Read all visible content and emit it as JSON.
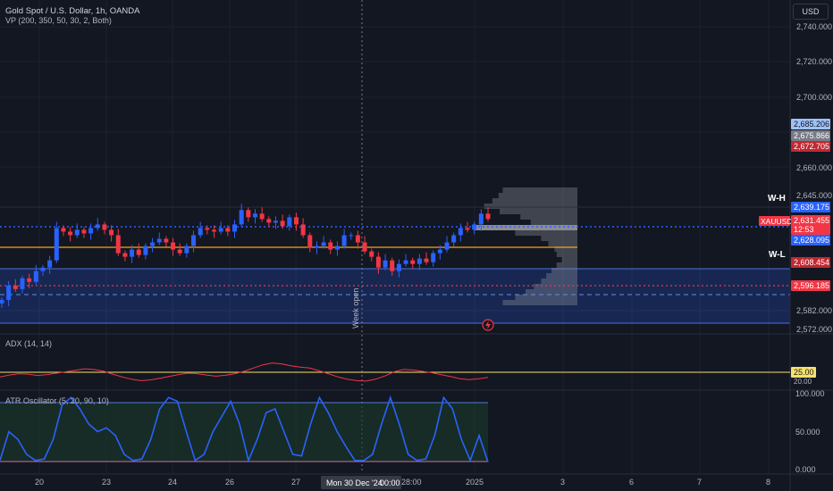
{
  "header": {
    "title": "Gold Spot / U.S. Dollar, 1h, OANDA",
    "vp_label": "VP (200, 350, 50, 30, 2, Both)",
    "currency_button": "USD"
  },
  "price_scale": {
    "ticks": [
      "2,740.000",
      "2,720.000",
      "2,700.000",
      "2,660.000",
      "2,645.000",
      "2,582.000",
      "2,572.000"
    ],
    "tags": {
      "t1": "2,685.206",
      "t2": "2,675.866",
      "t3": "2,672.705",
      "wh": "2,639.175",
      "sym": "XAUUSD",
      "price": "2,631.455",
      "countdown": "12:53",
      "t4": "2,628.095",
      "t5": "2,608.454",
      "t6": "2,596.185"
    },
    "wh_label": "W-H",
    "wl_label": "W-L"
  },
  "colors": {
    "background": "#131722",
    "up": "#2962ff",
    "down": "#f23645",
    "orange_line": "#f7a21b",
    "blue_zone": "#2962ff",
    "grid": "#1e2230"
  },
  "annotations": {
    "week_open": "Week open"
  },
  "adx": {
    "label": "ADX (14, 14)",
    "ticks": [
      "25.00",
      "20.00"
    ]
  },
  "atr": {
    "label": "ATR Oscillator (5, 20, 90, 10)",
    "ticks": [
      "100.000",
      "50.000",
      "0.000"
    ]
  },
  "time_axis": {
    "labels": [
      "20",
      "23",
      "24",
      "26",
      "27",
      "28:00",
      "2025",
      "3",
      "6",
      "7",
      "8"
    ],
    "crosshair": "Mon 30 Dec '24",
    "crosshair_time": "00:00"
  },
  "chart_data": {
    "type": "candlestick",
    "title": "Gold Spot / U.S. Dollar, 1h, OANDA",
    "ylim": [
      2566,
      2746
    ],
    "last_price": 2631.455,
    "levels": {
      "week_high": 2639.175,
      "week_low": 2608.454,
      "poc": 2628.095,
      "orange_line": 2618.0,
      "dashed_red": 2596.185,
      "dashed_blue": 2591.0
    },
    "zone": [
      2572,
      2604
    ],
    "close_path": [
      2588,
      2596,
      2594,
      2600,
      2598,
      2604,
      2606,
      2610,
      2628,
      2626,
      2624,
      2627,
      2625,
      2628,
      2630,
      2627,
      2624,
      2614,
      2612,
      2616,
      2613,
      2618,
      2620,
      2622,
      2620,
      2616,
      2614,
      2618,
      2624,
      2628,
      2627,
      2626,
      2628,
      2626,
      2630,
      2638,
      2634,
      2636,
      2633,
      2631,
      2632,
      2629,
      2634,
      2630,
      2624,
      2617,
      2618,
      2620,
      2616,
      2618,
      2624,
      2624,
      2620,
      2615,
      2612,
      2606,
      2610,
      2604,
      2608,
      2610,
      2608,
      2611,
      2609,
      2614,
      2616,
      2620,
      2624,
      2628,
      2627,
      2630,
      2636,
      2633
    ],
    "adx_values": [
      23.0,
      23.8,
      24.4,
      24.2,
      23.6,
      24.0,
      24.6,
      25.2,
      25.8,
      26.5,
      26.2,
      25.5,
      24.2,
      23.0,
      22.0,
      21.4,
      21.7,
      22.4,
      23.2,
      24.0,
      24.6,
      24.4,
      23.8,
      23.3,
      23.7,
      24.4,
      25.4,
      26.8,
      28.2,
      29.0,
      28.6,
      27.8,
      27.2,
      26.8,
      25.6,
      24.4,
      23.0,
      22.0,
      21.4,
      21.2,
      22.0,
      23.4,
      25.2,
      26.2,
      26.0,
      25.4,
      24.8,
      24.0,
      23.2,
      22.2,
      21.8,
      22.2,
      22.8
    ],
    "atr_values": [
      12,
      50,
      40,
      20,
      12,
      14,
      40,
      85,
      95,
      80,
      60,
      50,
      55,
      45,
      20,
      12,
      14,
      40,
      80,
      95,
      90,
      50,
      12,
      20,
      50,
      70,
      90,
      60,
      12,
      40,
      75,
      80,
      50,
      20,
      18,
      60,
      95,
      75,
      50,
      30,
      12,
      12,
      20,
      60,
      95,
      60,
      20,
      12,
      14,
      45,
      95,
      80,
      40,
      12,
      45,
      10
    ]
  }
}
